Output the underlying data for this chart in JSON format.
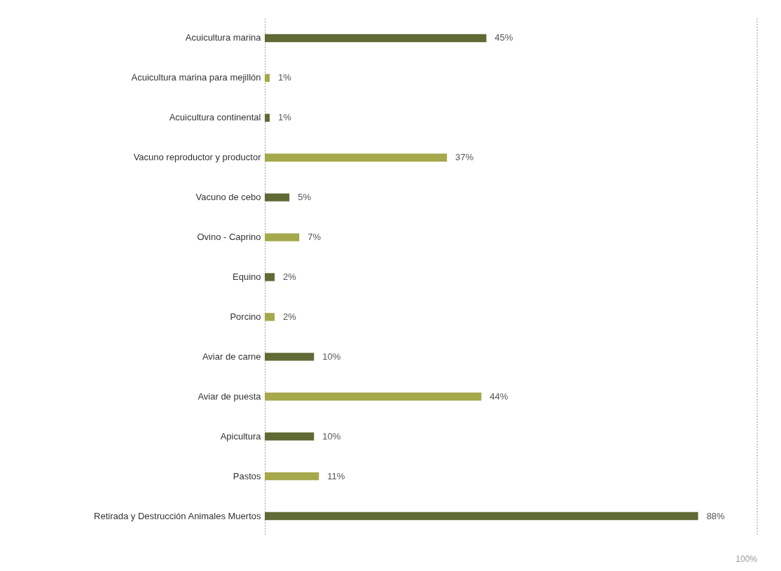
{
  "chart_data": {
    "type": "bar",
    "orientation": "horizontal",
    "categories": [
      "Acuicultura marina",
      "Acuicultura marina para mejillón",
      "Acuicultura continental",
      "Vacuno reproductor y productor",
      "Vacuno de cebo",
      "Ovino - Caprino",
      "Equino",
      "Porcino",
      "Aviar de carne",
      "Aviar de puesta",
      "Apicultura",
      "Pastos",
      "Retirada y Destrucción Animales Muertos"
    ],
    "values": [
      45,
      1,
      1,
      37,
      5,
      7,
      2,
      2,
      10,
      44,
      10,
      11,
      88
    ],
    "value_labels": [
      "45%",
      "1%",
      "1%",
      "37%",
      "5%",
      "7%",
      "2%",
      "2%",
      "10%",
      "44%",
      "10%",
      "11%",
      "88%"
    ],
    "colors": [
      "#5f6a35",
      "#a5a84b",
      "#5f6a35",
      "#a5a84b",
      "#5f6a35",
      "#a5a84b",
      "#5f6a35",
      "#a5a84b",
      "#5f6a35",
      "#a5a84b",
      "#5f6a35",
      "#a5a84b",
      "#5f6a35"
    ],
    "ref_lines": [
      {
        "axis": "x",
        "value": 100,
        "label": "100%",
        "line_style": "dotted"
      }
    ]
  }
}
